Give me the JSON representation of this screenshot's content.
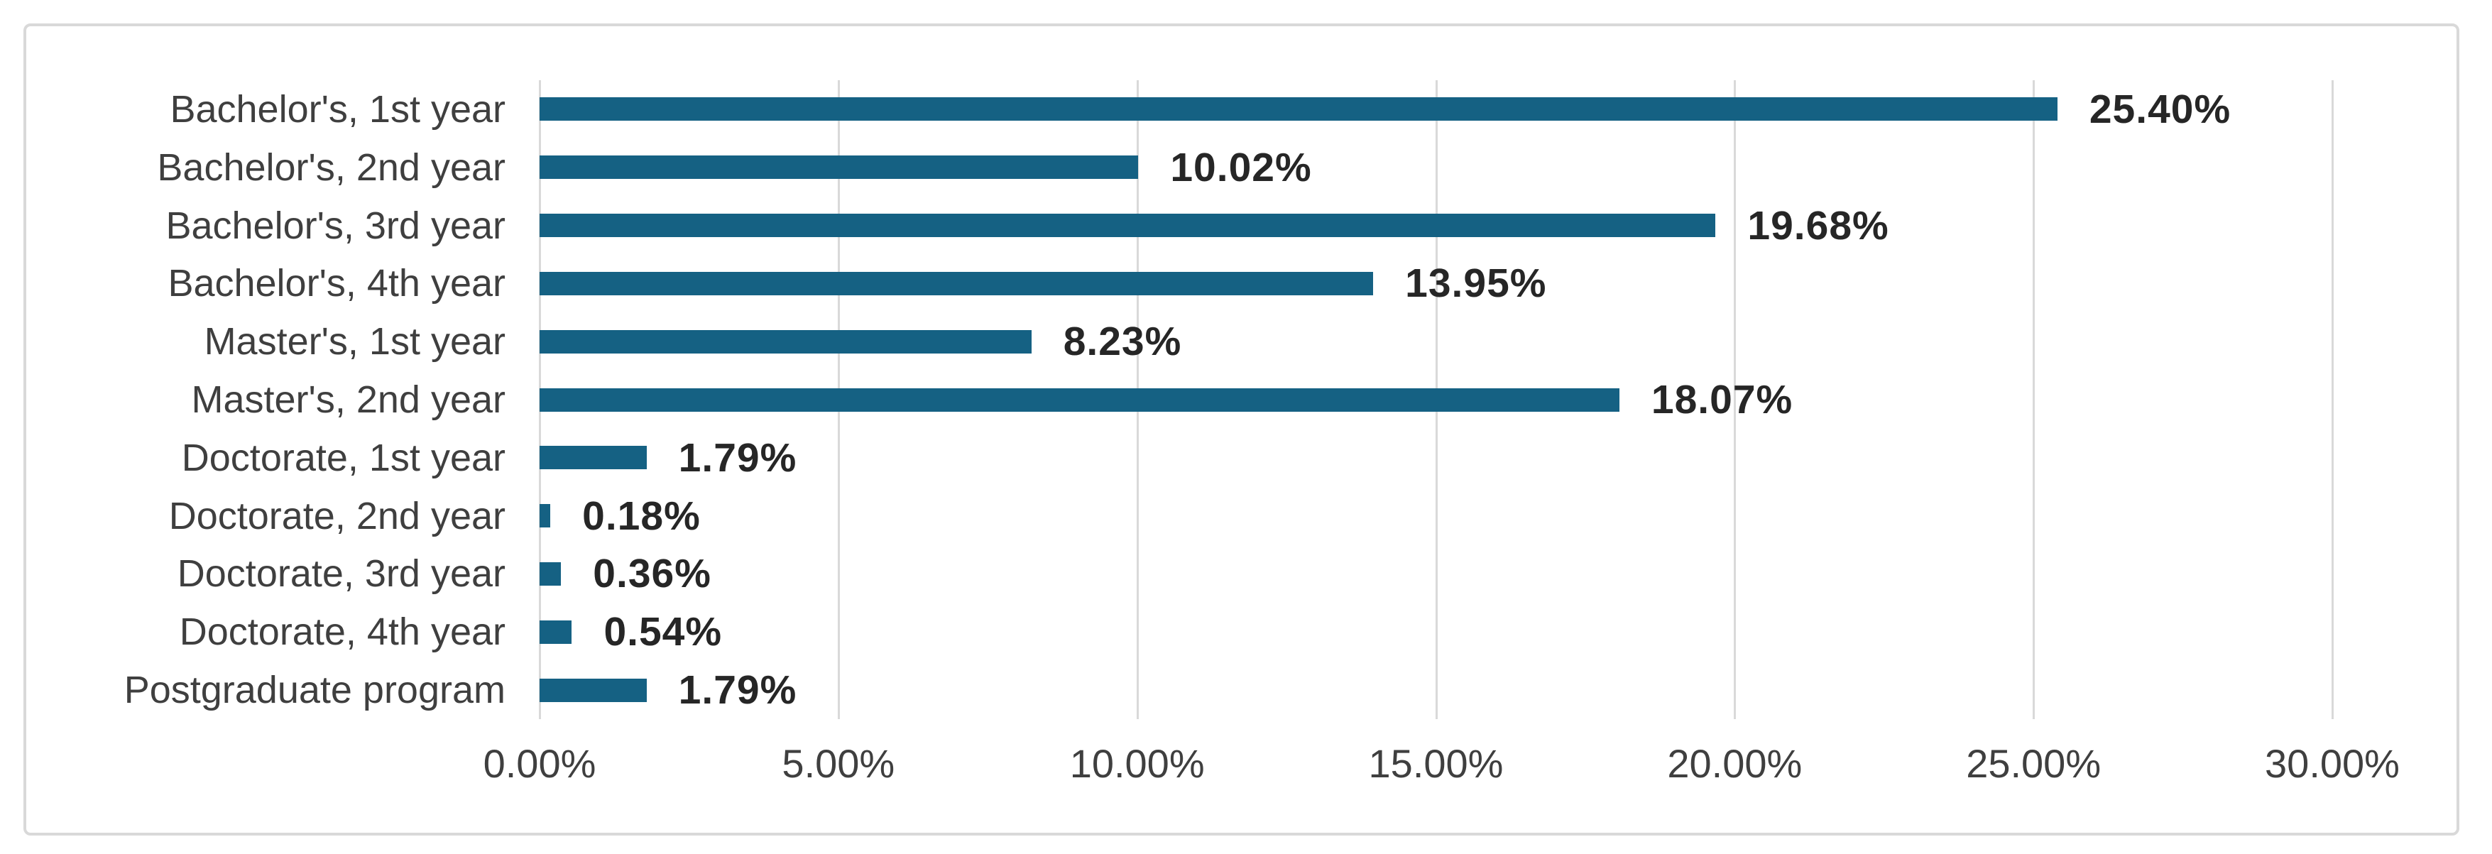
{
  "chart_data": {
    "type": "bar",
    "orientation": "horizontal",
    "categories": [
      "Bachelor's, 1st year",
      "Bachelor's, 2nd year",
      "Bachelor's, 3rd year",
      "Bachelor's, 4th year",
      "Master's, 1st year",
      "Master's, 2nd year",
      "Doctorate, 1st year",
      "Doctorate, 2nd year",
      "Doctorate, 3rd year",
      "Doctorate, 4th year",
      "Postgraduate program"
    ],
    "values": [
      25.4,
      10.02,
      19.68,
      13.95,
      8.23,
      18.07,
      1.79,
      0.18,
      0.36,
      0.54,
      1.79
    ],
    "value_labels": [
      "25.40%",
      "10.02%",
      "19.68%",
      "13.95%",
      "8.23%",
      "18.07%",
      "1.79%",
      "0.18%",
      "0.36%",
      "0.54%",
      "1.79%"
    ],
    "x_ticks": [
      "0.00%",
      "5.00%",
      "10.00%",
      "15.00%",
      "20.00%",
      "25.00%",
      "30.00%"
    ],
    "xlim": [
      0,
      30
    ],
    "grid": true,
    "legend": false,
    "colors": {
      "bar": "#156183",
      "gridline": "#d9d9d9",
      "frame_border": "#d9d9d9",
      "axis_label": "#3f3f3f",
      "value_label": "#262626"
    }
  }
}
